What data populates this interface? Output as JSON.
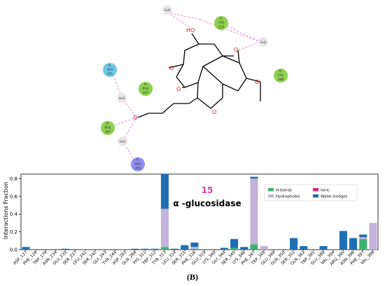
{
  "diagram": {
    "water_label": "H₂O",
    "oxygen_label": "O",
    "hydroxyl_label": "HO",
    "residues": [
      {
        "chain": "A:",
        "name": "TYR",
        "num": "313",
        "color": "#8fd14f"
      },
      {
        "chain": "A:",
        "name": "SER",
        "num": "351",
        "color": "#6cc8e8"
      },
      {
        "chain": "A:",
        "name": "PHE",
        "num": "347",
        "color": "#8fd14f"
      },
      {
        "chain": "A:",
        "name": "VAL",
        "num": "398",
        "color": "#8fd14f"
      },
      {
        "chain": "A:",
        "name": "PHE",
        "num": "397",
        "color": "#8fd14f"
      },
      {
        "chain": "A:",
        "name": "ARG",
        "num": "395",
        "color": "#8e8ff0"
      }
    ]
  },
  "chart_data": {
    "type": "bar",
    "stacked": true,
    "ylabel": "Interactions Fraction",
    "ylim": [
      0,
      0.85
    ],
    "yticks": [
      "0.0",
      "0.2",
      "0.4",
      "0.6",
      "0.8"
    ],
    "annotation_number": "15",
    "annotation_text": "α -glucosidase",
    "legend_position": "upper-right",
    "categories": [
      "ASP_127",
      "PHE_128",
      "TRP_179",
      "ASN_234",
      "GLU_235",
      "SER_237",
      "LEU_241",
      "SER_242",
      "GLY_243",
      "TYR_244",
      "ASP_283",
      "GLN_284",
      "HIS_311",
      "TRP_312",
      "TYR_313",
      "LEU_314",
      "SER_315",
      "PHE_316",
      "GLU_319",
      "LYS_340",
      "GLY_344",
      "SER_345",
      "LYS_346",
      "PHE_347",
      "TRP_348",
      "GLU_349",
      "GLN_350",
      "SER_351",
      "GLN_362",
      "TRP_381",
      "GLU_388",
      "VAL_394",
      "ARG_395",
      "ASN_396",
      "PHE_397",
      "VAL_398"
    ],
    "series": [
      {
        "name": "H-bonds",
        "color": "#3cb371",
        "values": [
          0,
          0,
          0,
          0,
          0,
          0,
          0,
          0,
          0,
          0,
          0,
          0,
          0,
          0,
          0.03,
          0,
          0,
          0.01,
          0,
          0,
          0,
          0.02,
          0,
          0.06,
          0,
          0,
          0,
          0,
          0,
          0,
          0,
          0,
          0,
          0,
          0.12,
          0
        ]
      },
      {
        "name": "Hydrophobic",
        "color": "#c3b3d8",
        "values": [
          0,
          0,
          0,
          0,
          0,
          0,
          0,
          0,
          0,
          0,
          0,
          0,
          0,
          0,
          0.43,
          0,
          0,
          0.02,
          0,
          0,
          0,
          0,
          0,
          0.74,
          0.04,
          0,
          0,
          0,
          0,
          0,
          0,
          0,
          0,
          0,
          0.02,
          0.3
        ]
      },
      {
        "name": "Ionic",
        "color": "#e6198a",
        "values": [
          0,
          0,
          0,
          0,
          0,
          0,
          0,
          0,
          0,
          0,
          0,
          0,
          0,
          0,
          0,
          0,
          0,
          0,
          0,
          0,
          0,
          0,
          0,
          0,
          0,
          0,
          0,
          0,
          0,
          0,
          0,
          0,
          0,
          0,
          0,
          0
        ]
      },
      {
        "name": "Water bridges",
        "color": "#1f6fb4",
        "values": [
          0.03,
          0,
          0,
          0,
          0.01,
          0,
          0,
          0,
          0,
          0,
          0,
          0.01,
          0.01,
          0.01,
          0.39,
          0.01,
          0.05,
          0.05,
          0,
          0,
          0.02,
          0.1,
          0.03,
          0.02,
          0,
          0,
          0,
          0.13,
          0.04,
          0,
          0.04,
          0,
          0.21,
          0.13,
          0.03,
          0
        ]
      }
    ]
  },
  "caption": "(B)"
}
